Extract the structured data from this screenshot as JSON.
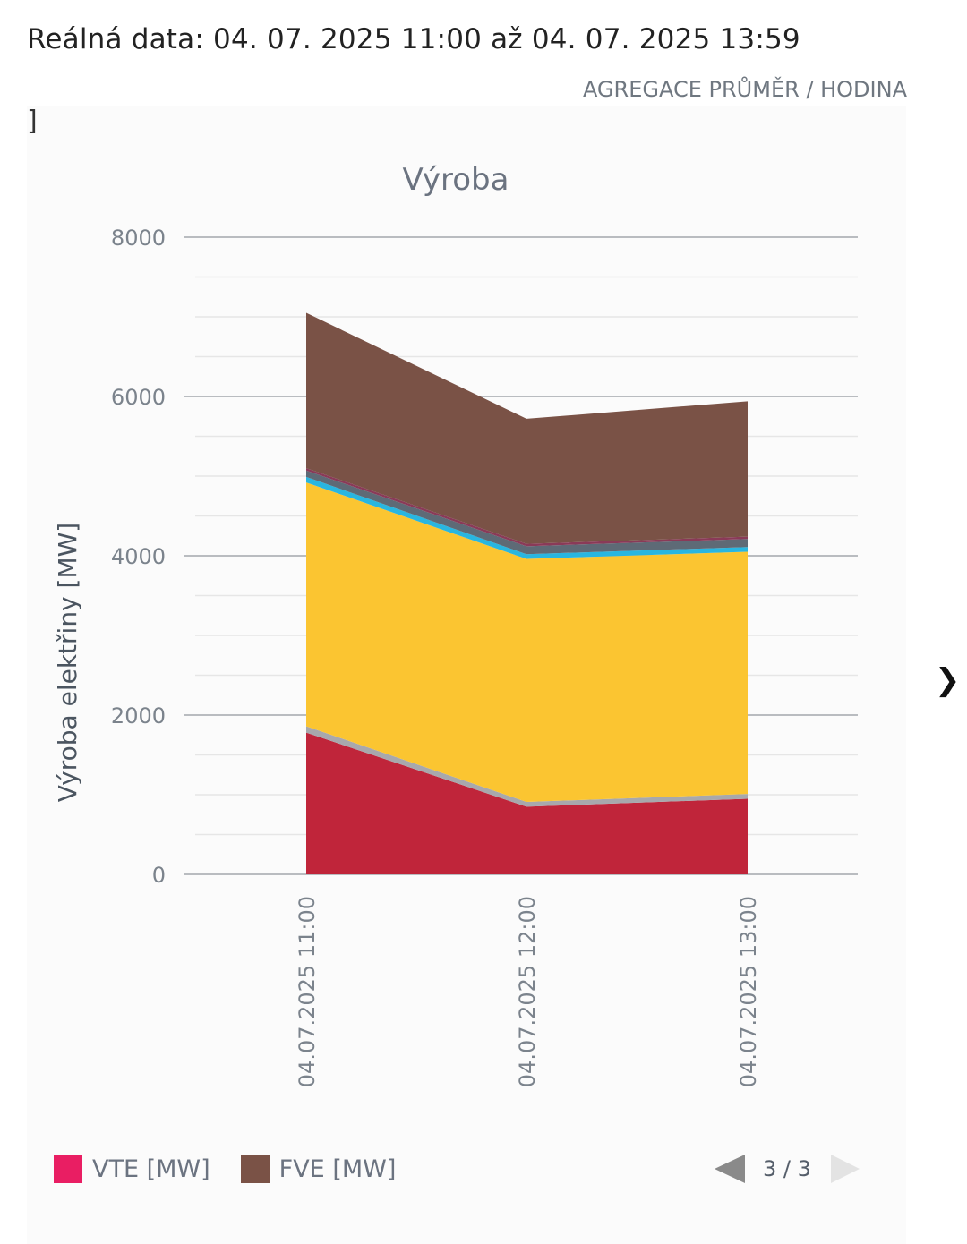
{
  "header": {
    "range": "Reálná data: 04. 07. 2025 11:00 až 04. 07. 2025 13:59",
    "aggregation": "AGREGACE PRŮMĚR / HODINA",
    "stray_mark": "]"
  },
  "chart_data": {
    "type": "area",
    "stacked": true,
    "title": "Výroba",
    "ylabel": "Výroba elektřiny [MW]",
    "xlabel": "",
    "categories": [
      "04.07.2025 11:00",
      "04.07.2025 12:00",
      "04.07.2025 13:00"
    ],
    "ylim": [
      0,
      8000
    ],
    "yticks": [
      0,
      2000,
      4000,
      6000,
      8000
    ],
    "grid": true,
    "series": [
      {
        "color": "#c0253a",
        "values": [
          1780,
          850,
          950
        ]
      },
      {
        "color": "#a8a8ac",
        "values": [
          80,
          60,
          60
        ]
      },
      {
        "color": "#fbc531",
        "values": [
          3060,
          3050,
          3040
        ]
      },
      {
        "color": "#29b6e0",
        "values": [
          70,
          60,
          60
        ]
      },
      {
        "color": "#5e6a76",
        "values": [
          80,
          100,
          100
        ]
      },
      {
        "color": "#8a3a58",
        "values": [
          30,
          30,
          30
        ]
      },
      {
        "color": "#7a5246",
        "values": [
          1950,
          1570,
          1700
        ]
      }
    ],
    "legend_position": "bottom",
    "legend": [
      {
        "name": "VTE [MW]",
        "color": "#e91e63"
      },
      {
        "name": "FVE [MW]",
        "color": "#7a5246"
      }
    ],
    "legend_page": "3 / 3"
  }
}
